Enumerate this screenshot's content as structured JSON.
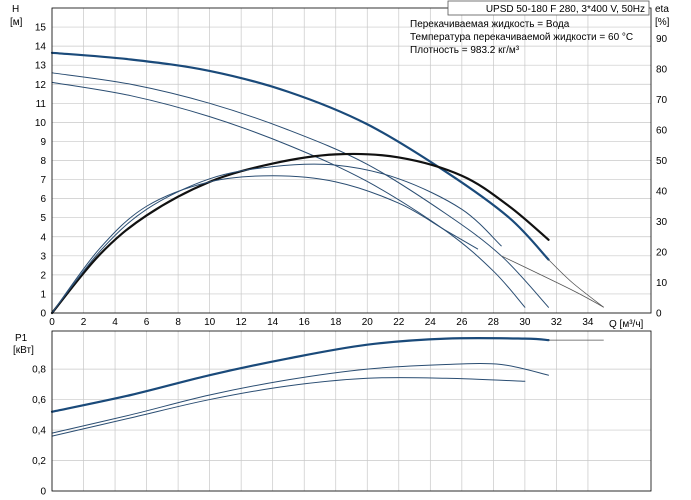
{
  "title": "UPSD 50-180 F 280, 3*400 V, 50Hz",
  "notes": [
    "Перекачиваемая жидкость = Вода",
    "Температура перекачиваемой жидкости = 60 °C",
    "Плотность = 983.2 кг/м³"
  ],
  "colors": {
    "dark": "#1a4a7a",
    "mid": "#2a4d72",
    "thin": "#555555",
    "grid": "#c8c8c8"
  },
  "chart_data": [
    {
      "type": "line",
      "title": "",
      "x_label": "Q [м³/ч]",
      "y_label": "H",
      "y_unit": "[м]",
      "y2_label": "eta",
      "y2_unit": "[%]",
      "x_ticks": [
        "0",
        "2",
        "4",
        "6",
        "8",
        "10",
        "12",
        "14",
        "16",
        "18",
        "20",
        "22",
        "24",
        "26",
        "28",
        "30",
        "32",
        "34"
      ],
      "y_ticks": [
        "0",
        "1",
        "2",
        "3",
        "4",
        "5",
        "6",
        "7",
        "8",
        "9",
        "10",
        "11",
        "12",
        "13",
        "14",
        "15"
      ],
      "y2_ticks": [
        "0",
        "10",
        "20",
        "30",
        "40",
        "50",
        "60",
        "70",
        "80",
        "90"
      ],
      "xlim": [
        0,
        38
      ],
      "ylim": [
        0,
        16
      ],
      "y2lim": [
        0,
        100
      ],
      "series": [
        {
          "axis": "H",
          "style": "thick",
          "points": [
            [
              0,
              13.65
            ],
            [
              5,
              13.3
            ],
            [
              10,
              12.7
            ],
            [
              15,
              11.6
            ],
            [
              20,
              9.9
            ],
            [
              25,
              7.4
            ],
            [
              29,
              5.0
            ],
            [
              31.5,
              2.8
            ]
          ],
          "ext": [
            [
              31.5,
              2.8
            ],
            [
              33,
              1.6
            ],
            [
              35,
              0.3
            ]
          ]
        },
        {
          "axis": "H",
          "style": "thin",
          "points": [
            [
              0,
              12.6
            ],
            [
              5,
              12.0
            ],
            [
              10,
              11.0
            ],
            [
              15,
              9.6
            ],
            [
              20,
              7.8
            ],
            [
              25,
              5.2
            ],
            [
              28.5,
              3.0
            ],
            [
              31.5,
              0.3
            ]
          ],
          "ext": [
            [
              28.5,
              3.0
            ],
            [
              33,
              1.2
            ],
            [
              35,
              0.3
            ]
          ]
        },
        {
          "axis": "H",
          "style": "thin",
          "points": [
            [
              0,
              12.1
            ],
            [
              5,
              11.4
            ],
            [
              10,
              10.3
            ],
            [
              15,
              8.8
            ],
            [
              20,
              6.9
            ],
            [
              25,
              4.3
            ],
            [
              28,
              2.2
            ],
            [
              30,
              0.3
            ]
          ],
          "ext": []
        },
        {
          "axis": "eta",
          "style": "thick",
          "points": [
            [
              0,
              0
            ],
            [
              3,
              19
            ],
            [
              6,
              32
            ],
            [
              10,
              43
            ],
            [
              14,
              49
            ],
            [
              18,
              52
            ],
            [
              22,
              51
            ],
            [
              26,
              45
            ],
            [
              29,
              35
            ],
            [
              31.5,
              24
            ]
          ],
          "ext": []
        },
        {
          "axis": "eta",
          "style": "thin",
          "points": [
            [
              0,
              0
            ],
            [
              3,
              20
            ],
            [
              6,
              34
            ],
            [
              10,
              44
            ],
            [
              14,
              48
            ],
            [
              18,
              48.5
            ],
            [
              22,
              44
            ],
            [
              26,
              34
            ],
            [
              28.5,
              22
            ]
          ],
          "ext": []
        },
        {
          "axis": "eta",
          "style": "thin",
          "points": [
            [
              0,
              0
            ],
            [
              3,
              21
            ],
            [
              6,
              35
            ],
            [
              10,
              43
            ],
            [
              14,
              45
            ],
            [
              18,
              43
            ],
            [
              22,
              36
            ],
            [
              25,
              27
            ],
            [
              27,
              21
            ]
          ],
          "ext": []
        }
      ]
    },
    {
      "type": "line",
      "title": "",
      "y_label": "P1",
      "y_unit": "[кВт]",
      "y_ticks": [
        "0",
        "0,2",
        "0,4",
        "0,6",
        "0,8"
      ],
      "xlim": [
        0,
        38
      ],
      "ylim": [
        0,
        1.05
      ],
      "series": [
        {
          "style": "thick",
          "points": [
            [
              0,
              0.52
            ],
            [
              5,
              0.63
            ],
            [
              10,
              0.76
            ],
            [
              15,
              0.87
            ],
            [
              20,
              0.96
            ],
            [
              25,
              1.0
            ],
            [
              30,
              1.0
            ],
            [
              31.5,
              0.99
            ]
          ],
          "ext": [
            [
              31.5,
              0.99
            ],
            [
              35,
              0.99
            ]
          ]
        },
        {
          "style": "thin",
          "points": [
            [
              0,
              0.38
            ],
            [
              5,
              0.5
            ],
            [
              10,
              0.63
            ],
            [
              15,
              0.73
            ],
            [
              20,
              0.8
            ],
            [
              25,
              0.83
            ],
            [
              28.5,
              0.83
            ],
            [
              31.5,
              0.76
            ]
          ],
          "ext": []
        },
        {
          "style": "thin",
          "points": [
            [
              0,
              0.36
            ],
            [
              5,
              0.48
            ],
            [
              10,
              0.6
            ],
            [
              15,
              0.69
            ],
            [
              20,
              0.74
            ],
            [
              25,
              0.74
            ],
            [
              30,
              0.72
            ]
          ],
          "ext": []
        }
      ]
    }
  ]
}
